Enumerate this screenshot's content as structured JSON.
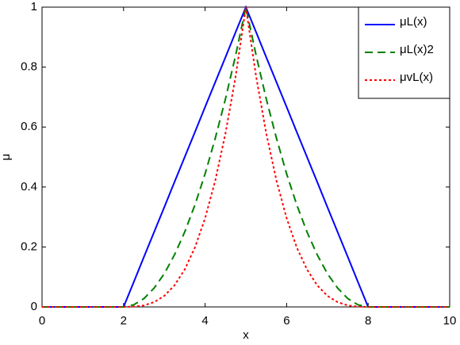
{
  "chart_data": {
    "type": "line",
    "xlabel": "x",
    "ylabel": "μ",
    "x": [
      0,
      1,
      2,
      2.25,
      2.5,
      2.75,
      3,
      3.25,
      3.5,
      3.75,
      4,
      4.25,
      4.5,
      4.75,
      5,
      5.25,
      5.5,
      5.75,
      6,
      6.25,
      6.5,
      6.75,
      7,
      7.25,
      7.5,
      7.75,
      8,
      9,
      10
    ],
    "series": [
      {
        "name": "μL(x)",
        "color": "#0000ff",
        "dash": "solid",
        "values": [
          0,
          0,
          0,
          0.083,
          0.167,
          0.25,
          0.333,
          0.417,
          0.5,
          0.583,
          0.667,
          0.75,
          0.833,
          0.917,
          1,
          0.917,
          0.833,
          0.75,
          0.667,
          0.583,
          0.5,
          0.417,
          0.333,
          0.25,
          0.167,
          0.083,
          0,
          0,
          0
        ]
      },
      {
        "name": "μL(x)2",
        "color": "#008000",
        "dash": "dashed",
        "values": [
          0,
          0,
          0,
          0.007,
          0.028,
          0.063,
          0.111,
          0.174,
          0.25,
          0.34,
          0.444,
          0.563,
          0.694,
          0.84,
          1,
          0.84,
          0.694,
          0.563,
          0.444,
          0.34,
          0.25,
          0.174,
          0.111,
          0.063,
          0.028,
          0.007,
          0,
          0,
          0
        ]
      },
      {
        "name": "μvL(x)",
        "color": "#ff0000",
        "dash": "dotted",
        "values": [
          0,
          0,
          0,
          0.001,
          0.005,
          0.016,
          0.037,
          0.072,
          0.125,
          0.198,
          0.296,
          0.422,
          0.579,
          0.77,
          1,
          0.77,
          0.579,
          0.422,
          0.296,
          0.198,
          0.125,
          0.072,
          0.037,
          0.016,
          0.005,
          0.001,
          0,
          0,
          0
        ]
      }
    ],
    "xlim": [
      0,
      10
    ],
    "xticks": [
      0,
      2,
      4,
      6,
      8,
      10
    ],
    "ylim": [
      0,
      1
    ],
    "yticks": [
      0,
      0.2,
      0.4,
      0.6,
      0.8,
      1
    ],
    "legend": "upper right"
  }
}
